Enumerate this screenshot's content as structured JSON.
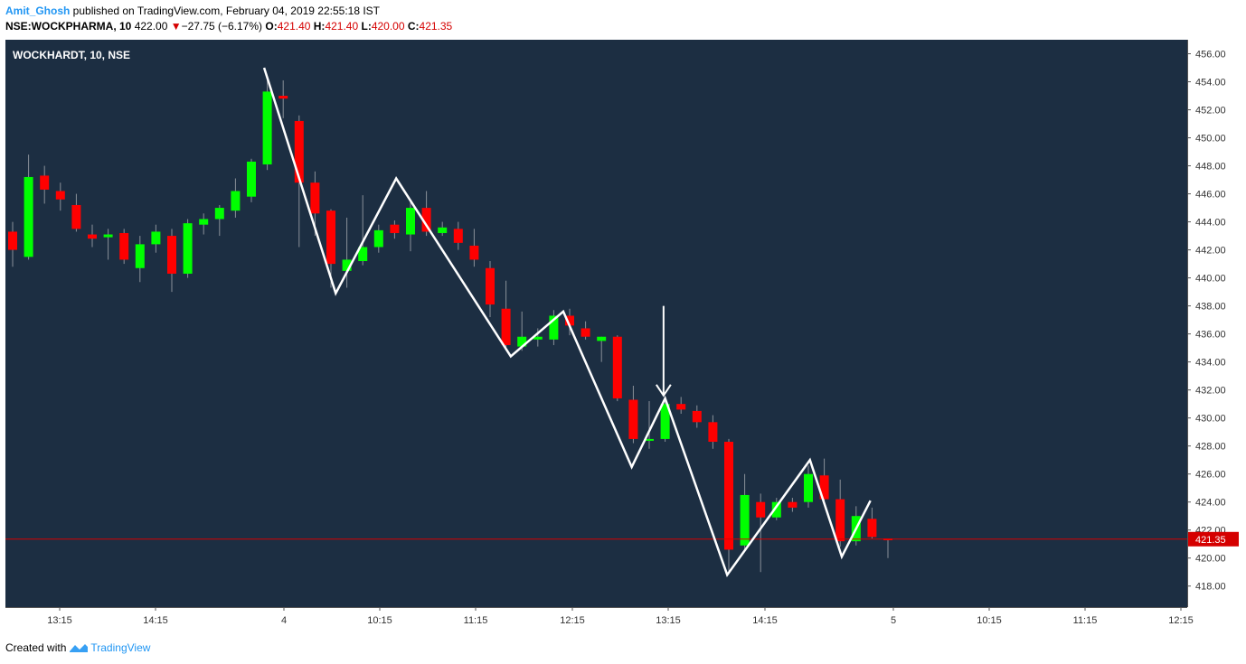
{
  "header": {
    "author": "Amit_Ghosh",
    "published": " published on TradingView.com, February 04, 2019 22:55:18 IST",
    "symbol_line": "NSE:WOCKPHARMA, 10",
    "last": "422.00",
    "arrow": "▼",
    "change": "−27.75 (−6.17%)",
    "o_label": "O:",
    "o": "421.40",
    "h_label": "H:",
    "h": "421.40",
    "l_label": "L:",
    "l": "420.00",
    "c_label": "C:",
    "c": "421.35"
  },
  "chart_data": {
    "type": "candlestick",
    "title": "WOCKHARDT, 10, NSE",
    "ylim": [
      416.5,
      457
    ],
    "y_ticks": [
      "456.00",
      "454.00",
      "452.00",
      "450.00",
      "448.00",
      "446.00",
      "444.00",
      "442.00",
      "440.00",
      "438.00",
      "436.00",
      "434.00",
      "432.00",
      "430.00",
      "428.00",
      "426.00",
      "424.00",
      "422.00",
      "420.00",
      "418.00"
    ],
    "y_tick_values": [
      456,
      454,
      452,
      450,
      448,
      446,
      444,
      442,
      440,
      438,
      436,
      434,
      432,
      430,
      428,
      426,
      424,
      422,
      420,
      418
    ],
    "x_ticks": [
      "13:15",
      "14:15",
      "4",
      "10:15",
      "11:15",
      "12:15",
      "13:15",
      "14:15",
      "5",
      "10:15",
      "11:15",
      "12:15"
    ],
    "last_price_label": "421.35",
    "last_price": 421.35,
    "colors": {
      "up": "#00ff00",
      "down": "#ff0000",
      "background": "#1c2e42",
      "pattern_line": "#ffffff",
      "price_line": "#d50000"
    },
    "candles": [
      {
        "o": 443.3,
        "h": 444.0,
        "l": 440.8,
        "c": 442.0
      },
      {
        "o": 441.5,
        "h": 448.8,
        "l": 441.3,
        "c": 447.2
      },
      {
        "o": 447.3,
        "h": 448.0,
        "l": 445.3,
        "c": 446.3
      },
      {
        "o": 446.2,
        "h": 446.8,
        "l": 444.8,
        "c": 445.6
      },
      {
        "o": 445.2,
        "h": 446.0,
        "l": 443.3,
        "c": 443.5
      },
      {
        "o": 443.1,
        "h": 443.8,
        "l": 442.2,
        "c": 442.8
      },
      {
        "o": 442.9,
        "h": 443.5,
        "l": 441.3,
        "c": 443.1
      },
      {
        "o": 443.2,
        "h": 443.5,
        "l": 441.0,
        "c": 441.3
      },
      {
        "o": 440.7,
        "h": 443.0,
        "l": 439.7,
        "c": 442.4
      },
      {
        "o": 442.4,
        "h": 443.8,
        "l": 441.8,
        "c": 443.3
      },
      {
        "o": 443.0,
        "h": 443.5,
        "l": 439.0,
        "c": 440.3
      },
      {
        "o": 440.3,
        "h": 444.2,
        "l": 440.0,
        "c": 443.9
      },
      {
        "o": 443.8,
        "h": 444.6,
        "l": 443.1,
        "c": 444.2
      },
      {
        "o": 444.2,
        "h": 445.2,
        "l": 443.0,
        "c": 445.0
      },
      {
        "o": 444.8,
        "h": 447.1,
        "l": 444.3,
        "c": 446.2
      },
      {
        "o": 445.8,
        "h": 448.5,
        "l": 445.4,
        "c": 448.3
      },
      {
        "o": 448.1,
        "h": 454.4,
        "l": 447.7,
        "c": 453.3
      },
      {
        "o": 453.0,
        "h": 454.1,
        "l": 451.4,
        "c": 452.8
      },
      {
        "o": 451.2,
        "h": 451.6,
        "l": 442.2,
        "c": 446.8
      },
      {
        "o": 446.8,
        "h": 447.6,
        "l": 443.0,
        "c": 444.6
      },
      {
        "o": 444.8,
        "h": 444.9,
        "l": 439.3,
        "c": 441.0
      },
      {
        "o": 440.5,
        "h": 444.3,
        "l": 439.3,
        "c": 441.3
      },
      {
        "o": 441.2,
        "h": 445.9,
        "l": 440.9,
        "c": 442.2
      },
      {
        "o": 442.2,
        "h": 443.8,
        "l": 441.8,
        "c": 443.4
      },
      {
        "o": 443.8,
        "h": 444.1,
        "l": 442.8,
        "c": 443.2
      },
      {
        "o": 443.1,
        "h": 445.5,
        "l": 441.9,
        "c": 445.0
      },
      {
        "o": 445.0,
        "h": 446.2,
        "l": 443.0,
        "c": 443.3
      },
      {
        "o": 443.2,
        "h": 444.0,
        "l": 443.0,
        "c": 443.6
      },
      {
        "o": 443.5,
        "h": 444.0,
        "l": 442.0,
        "c": 442.5
      },
      {
        "o": 442.3,
        "h": 443.5,
        "l": 440.8,
        "c": 441.3
      },
      {
        "o": 440.7,
        "h": 441.2,
        "l": 437.2,
        "c": 438.1
      },
      {
        "o": 437.8,
        "h": 439.8,
        "l": 434.9,
        "c": 435.2
      },
      {
        "o": 435.1,
        "h": 437.6,
        "l": 434.8,
        "c": 435.8
      },
      {
        "o": 435.6,
        "h": 436.4,
        "l": 435.1,
        "c": 435.8
      },
      {
        "o": 435.6,
        "h": 437.7,
        "l": 435.2,
        "c": 437.3
      },
      {
        "o": 437.3,
        "h": 437.8,
        "l": 435.9,
        "c": 436.6
      },
      {
        "o": 436.4,
        "h": 436.9,
        "l": 435.6,
        "c": 435.8
      },
      {
        "o": 435.5,
        "h": 435.8,
        "l": 434.0,
        "c": 435.8
      },
      {
        "o": 435.8,
        "h": 435.9,
        "l": 431.2,
        "c": 431.4
      },
      {
        "o": 431.3,
        "h": 432.3,
        "l": 428.2,
        "c": 428.5
      },
      {
        "o": 428.4,
        "h": 431.2,
        "l": 427.8,
        "c": 428.5
      },
      {
        "o": 428.5,
        "h": 431.3,
        "l": 428.3,
        "c": 431.0
      },
      {
        "o": 431.0,
        "h": 431.5,
        "l": 430.3,
        "c": 430.6
      },
      {
        "o": 430.5,
        "h": 430.9,
        "l": 429.3,
        "c": 429.7
      },
      {
        "o": 429.7,
        "h": 430.2,
        "l": 427.8,
        "c": 428.3
      },
      {
        "o": 428.3,
        "h": 428.5,
        "l": 418.9,
        "c": 420.6
      },
      {
        "o": 420.9,
        "h": 426.0,
        "l": 420.6,
        "c": 424.5
      },
      {
        "o": 424.0,
        "h": 424.6,
        "l": 419.0,
        "c": 422.9
      },
      {
        "o": 422.9,
        "h": 424.3,
        "l": 422.7,
        "c": 424.0
      },
      {
        "o": 424.0,
        "h": 424.3,
        "l": 423.3,
        "c": 423.6
      },
      {
        "o": 424.0,
        "h": 426.6,
        "l": 423.6,
        "c": 426.0
      },
      {
        "o": 425.9,
        "h": 427.1,
        "l": 424.1,
        "c": 424.2
      },
      {
        "o": 424.2,
        "h": 425.6,
        "l": 420.8,
        "c": 421.2
      },
      {
        "o": 421.2,
        "h": 423.7,
        "l": 420.9,
        "c": 423.0
      },
      {
        "o": 422.8,
        "h": 423.6,
        "l": 421.4,
        "c": 421.5
      },
      {
        "o": 421.4,
        "h": 421.4,
        "l": 420.0,
        "c": 421.35
      }
    ],
    "annotations": {
      "zigzag": [
        {
          "candle": 15.8,
          "price": 455.0
        },
        {
          "candle": 20.3,
          "price": 438.9
        },
        {
          "candle": 24.1,
          "price": 447.1
        },
        {
          "candle": 31.3,
          "price": 434.4
        },
        {
          "candle": 34.6,
          "price": 437.6
        },
        {
          "candle": 38.9,
          "price": 426.5
        },
        {
          "candle": 41.0,
          "price": 431.4
        },
        {
          "candle": 44.9,
          "price": 418.8
        },
        {
          "candle": 50.1,
          "price": 427.0
        },
        {
          "candle": 52.1,
          "price": 420.1
        },
        {
          "candle": 53.9,
          "price": 424.1
        }
      ],
      "arrow": {
        "candle": 40.9,
        "from": 438.0,
        "to": 431.6
      }
    }
  },
  "footer": {
    "created_with": "Created with",
    "brand": "TradingView"
  }
}
